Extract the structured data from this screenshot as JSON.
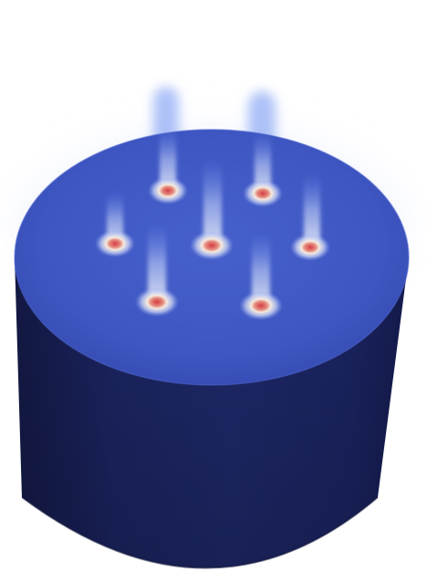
{
  "scene": {
    "subject": "cylinder-with-heat-sources",
    "colors": {
      "background": "#ffffff",
      "body_dark": "#151b4a",
      "body_mid": "#1d2767",
      "body_edge": "#232f78",
      "top_face": "#3d54c2",
      "top_face_light": "#4a62d0",
      "plume_blue": "#8fa8f5",
      "hotspot_core": "#d9464a",
      "hotspot_ring": "#f4e3d8",
      "hotspot_glow": "#b8c4ef"
    },
    "hotspot_count": 7,
    "hotspots": [
      {
        "name": "hotspot-back-left"
      },
      {
        "name": "hotspot-back-right"
      },
      {
        "name": "hotspot-middle-left"
      },
      {
        "name": "hotspot-center"
      },
      {
        "name": "hotspot-middle-right"
      },
      {
        "name": "hotspot-front-left"
      },
      {
        "name": "hotspot-front-right"
      }
    ]
  }
}
